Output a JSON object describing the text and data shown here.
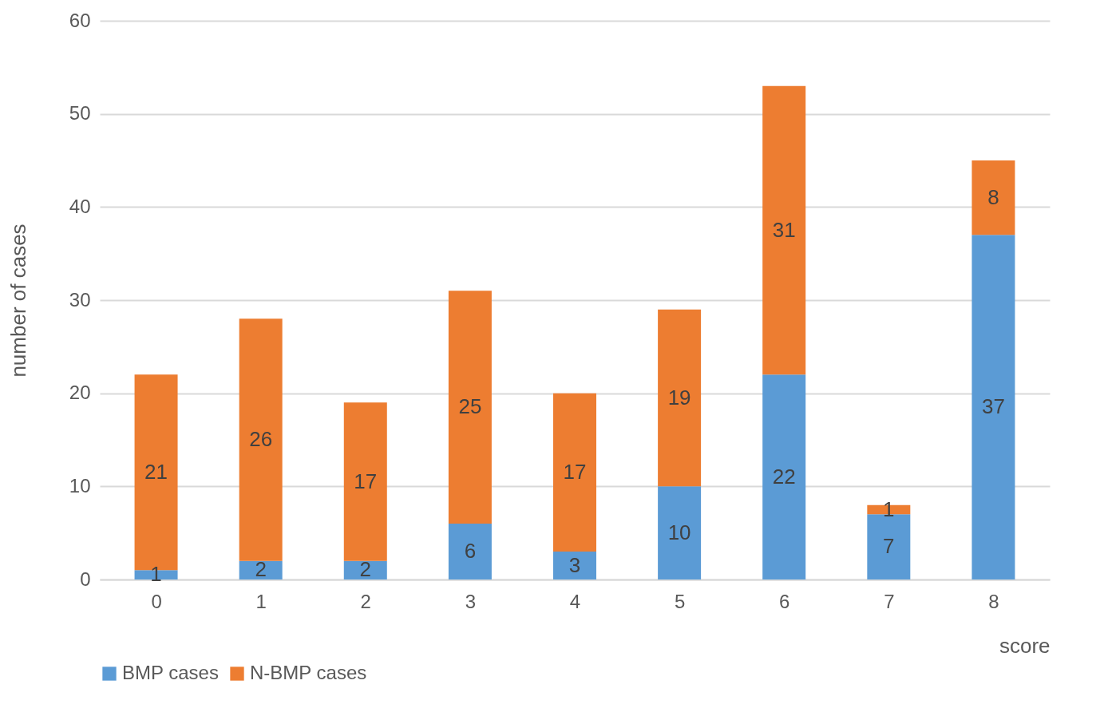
{
  "chart_data": {
    "type": "bar",
    "xlabel": "score",
    "ylabel": "number of cases",
    "categories": [
      "0",
      "1",
      "2",
      "3",
      "4",
      "5",
      "6",
      "7",
      "8"
    ],
    "series": [
      {
        "name": "BMP cases",
        "color": "#5b9bd5",
        "values": [
          1,
          2,
          2,
          6,
          3,
          10,
          22,
          7,
          37
        ]
      },
      {
        "name": "N-BMP cases",
        "color": "#ed7d31",
        "values": [
          21,
          26,
          17,
          25,
          17,
          19,
          31,
          1,
          8
        ]
      }
    ],
    "stacked": true,
    "ylim": [
      0,
      60
    ],
    "yticks": [
      0,
      10,
      20,
      30,
      40,
      50,
      60
    ],
    "grid": "y",
    "legend": "bottom",
    "data_labels": true
  }
}
